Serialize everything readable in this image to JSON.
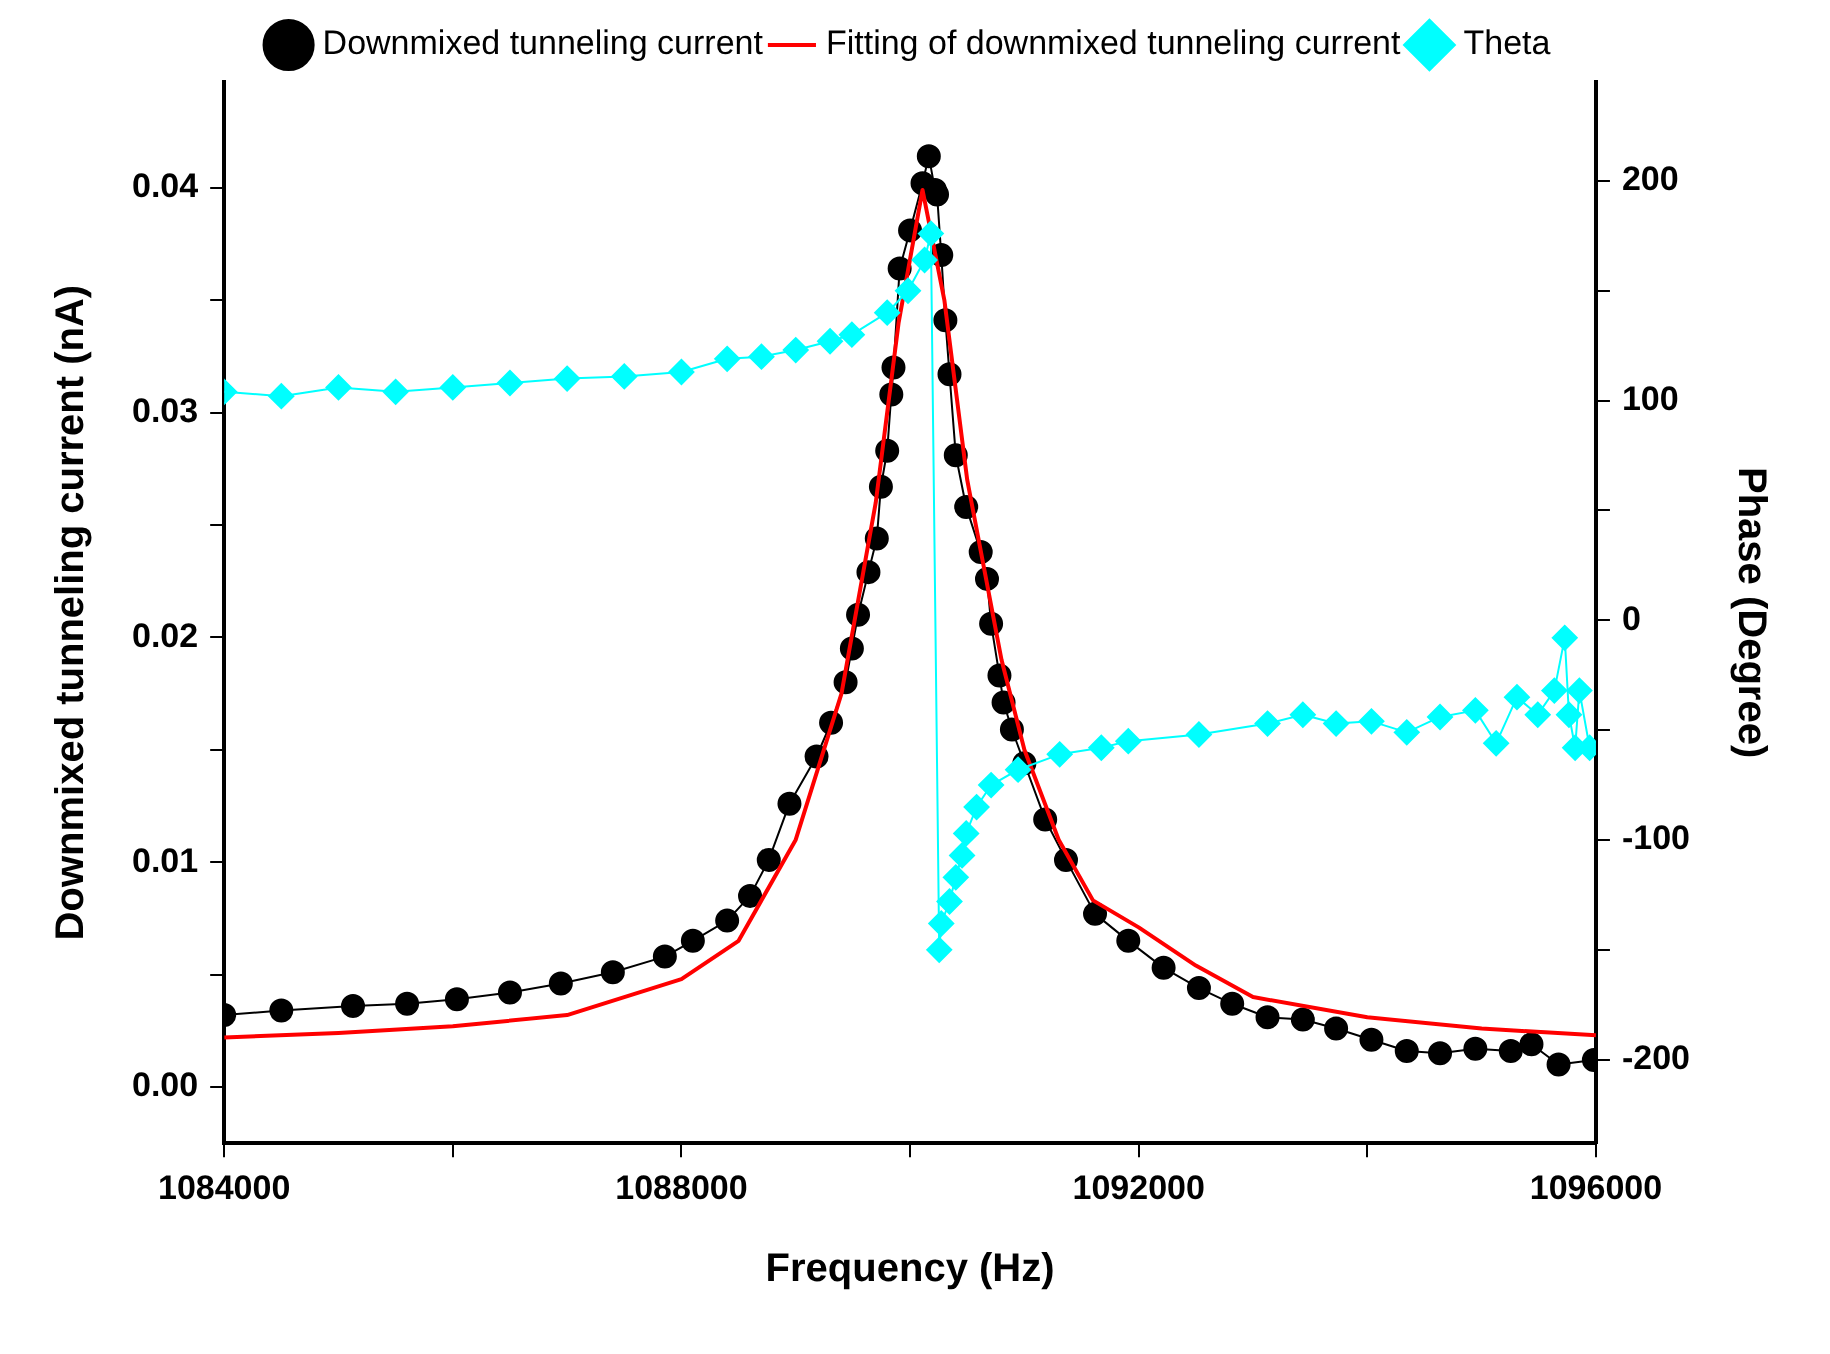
{
  "chart_data": {
    "type": "line",
    "xlabel": "Frequency (Hz)",
    "ylabel": "Downmixed tunneling current (nA)",
    "y2label": "Phase (Degree)",
    "xlim": [
      1084000,
      1096000
    ],
    "xticks": [
      1084000,
      {
        "value": 1086000,
        "label": null
      },
      1088000,
      {
        "value": 1090000,
        "label": null
      },
      1092000,
      {
        "value": 1094000,
        "label": null
      },
      1096000
    ],
    "ylim": [
      -0.0025,
      0.0447
    ],
    "yticks": [
      {
        "value": 0,
        "label": "0.00"
      },
      {
        "value": 0.005,
        "label": null
      },
      {
        "value": 0.01,
        "label": "0.01"
      },
      {
        "value": 0.015,
        "label": null
      },
      {
        "value": 0.02,
        "label": "0.02"
      },
      {
        "value": 0.025,
        "label": null
      },
      {
        "value": 0.03,
        "label": "0.03"
      },
      {
        "value": 0.035,
        "label": null
      },
      {
        "value": 0.04,
        "label": "0.04"
      }
    ],
    "y2lim": [
      -238,
      245
    ],
    "y2ticks": [
      -200,
      {
        "value": -150,
        "label": null
      },
      -100,
      {
        "value": -50,
        "label": null
      },
      0,
      {
        "value": 50,
        "label": null
      },
      100,
      {
        "value": 150,
        "label": null
      },
      200
    ],
    "grid": false,
    "legend": "top",
    "series": [
      {
        "name": "Downmixed tunneling current",
        "color": "#000000",
        "marker": "circle",
        "x": [
          1084000,
          1084500,
          1085127,
          1085600,
          1086036,
          1086500,
          1086945,
          1087400,
          1087855,
          1088100,
          1088400,
          1088600,
          1088764,
          1088945,
          1089182,
          1089309,
          1089436,
          1089491,
          1089545,
          1089636,
          1089709,
          1089745,
          1089800,
          1089836,
          1089855,
          1089909,
          1090000,
          1090109,
          1090164,
          1090218,
          1090236,
          1090273,
          1090309,
          1090345,
          1090400,
          1090491,
          1090618,
          1090673,
          1090709,
          1090782,
          1090818,
          1090891,
          1091000,
          1091182,
          1091364,
          1091618,
          1091909,
          1092218,
          1092527,
          1092818,
          1093127,
          1093436,
          1093727,
          1094036,
          1094345,
          1094636,
          1094945,
          1095255,
          1095436,
          1095673,
          1095982
        ],
        "values": [
          0.0032,
          0.0034,
          0.0036,
          0.0037,
          0.0039,
          0.0042,
          0.0046,
          0.0051,
          0.0058,
          0.0065,
          0.0074,
          0.0085,
          0.0101,
          0.0126,
          0.0147,
          0.0162,
          0.018,
          0.0195,
          0.021,
          0.0229,
          0.0244,
          0.0267,
          0.0283,
          0.0308,
          0.032,
          0.0364,
          0.0381,
          0.0402,
          0.0414,
          0.0399,
          0.0397,
          0.037,
          0.0341,
          0.0317,
          0.0281,
          0.0258,
          0.0238,
          0.0226,
          0.0206,
          0.0183,
          0.0171,
          0.0159,
          0.0144,
          0.0119,
          0.0101,
          0.0077,
          0.0065,
          0.0053,
          0.0044,
          0.0037,
          0.0031,
          0.003,
          0.0026,
          0.0021,
          0.0016,
          0.0015,
          0.0017,
          0.0016,
          0.0019,
          0.001,
          0.0012
        ]
      },
      {
        "name": "Fitting of downmixed tunneling current",
        "color": "#ff0000",
        "marker": "none",
        "x": [
          1084000,
          1085000,
          1086000,
          1087000,
          1088000,
          1088500,
          1089000,
          1089400,
          1089700,
          1089900,
          1090109,
          1090300,
          1090500,
          1090800,
          1091000,
          1091300,
          1091600,
          1092000,
          1092500,
          1093000,
          1094000,
          1095000,
          1096000
        ],
        "values": [
          0.0022,
          0.0024,
          0.0027,
          0.0032,
          0.0048,
          0.0065,
          0.011,
          0.0175,
          0.026,
          0.034,
          0.0399,
          0.035,
          0.027,
          0.019,
          0.015,
          0.011,
          0.0083,
          0.0071,
          0.0054,
          0.004,
          0.0031,
          0.0026,
          0.0023
        ]
      },
      {
        "name": "Theta",
        "color": "#00ffff",
        "marker": "diamond",
        "axis": "y2",
        "x": [
          1084000,
          1084500,
          1085000,
          1085500,
          1086000,
          1086500,
          1087000,
          1087500,
          1088000,
          1088400,
          1088700,
          1089000,
          1089300,
          1089491,
          1089800,
          1089982,
          1090127,
          1090182,
          1090255,
          1090273,
          1090345,
          1090400,
          1090455,
          1090491,
          1090582,
          1090709,
          1090945,
          1091309,
          1091673,
          1091909,
          1092527,
          1093127,
          1093436,
          1093727,
          1094036,
          1094345,
          1094636,
          1094945,
          1095127,
          1095309,
          1095491,
          1095636,
          1095727,
          1095764,
          1095818,
          1095855,
          1095945
        ],
        "values": [
          104,
          102,
          106,
          104,
          106,
          108,
          110,
          111,
          113,
          119,
          120,
          123,
          127,
          130,
          140,
          150,
          164,
          176,
          -150,
          -138,
          -128,
          -117,
          -107,
          -97,
          -85,
          -75,
          -68,
          -61,
          -58,
          -55,
          -52,
          -47,
          -43,
          -47,
          -46,
          -51,
          -44,
          -41,
          -56,
          -35,
          -43,
          -32,
          -8,
          -43,
          -58,
          -32,
          -58
        ]
      }
    ]
  }
}
